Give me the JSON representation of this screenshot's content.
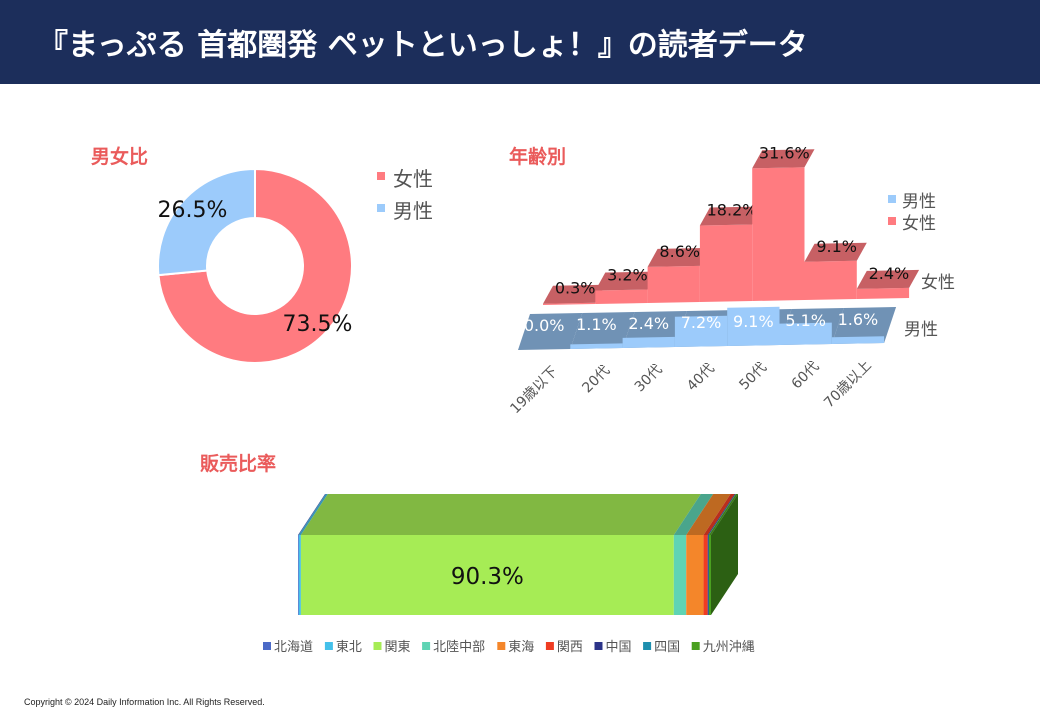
{
  "header": {
    "title": "『まっぷる 首都圏発 ペットといっしょ！』の読者データ"
  },
  "colors": {
    "header_bg": "#1c2e5b",
    "section_title": "#ea5b5b",
    "female": "#ff7b80",
    "male": "#9ccbfb"
  },
  "footer": {
    "copyright": "Copyright © 2024 Daily Information Inc. All Rights Reserved."
  },
  "chart_data": [
    {
      "id": "gender",
      "type": "pie",
      "title": "男女比",
      "donut": true,
      "legend_position": "right",
      "slices": [
        {
          "label": "女性",
          "value": 73.5,
          "value_label": "73.5%",
          "color": "#ff7b80"
        },
        {
          "label": "男性",
          "value": 26.5,
          "value_label": "26.5%",
          "color": "#9ccbfb"
        }
      ]
    },
    {
      "id": "age",
      "type": "area",
      "title": "年齢別",
      "three_d": true,
      "legend_position": "top-right",
      "categories": [
        "19歳以下",
        "20代",
        "30代",
        "40代",
        "50代",
        "60代",
        "70歳以上"
      ],
      "series": [
        {
          "name": "女性",
          "color": "#ff7b80",
          "values": [
            0.3,
            3.2,
            8.6,
            18.2,
            31.6,
            9.1,
            2.4
          ],
          "labels": [
            "0.3%",
            "3.2%",
            "8.6%",
            "18.2%",
            "31.6%",
            "9.1%",
            "2.4%"
          ]
        },
        {
          "name": "男性",
          "color": "#9ccbfb",
          "values": [
            0.0,
            1.1,
            2.4,
            7.2,
            9.1,
            5.1,
            1.6
          ],
          "labels": [
            "0.0%",
            "1.1%",
            "2.4%",
            "7.2%",
            "9.1%",
            "5.1%",
            "1.6%"
          ]
        }
      ],
      "legend": [
        "男性",
        "女性"
      ],
      "depth_labels": [
        "女性",
        "男性"
      ]
    },
    {
      "id": "sales",
      "type": "bar",
      "title": "販売比率",
      "stacked_100": true,
      "orientation": "horizontal",
      "three_d": true,
      "legend_position": "bottom",
      "series": [
        {
          "name": "北海道",
          "value": 0.2,
          "color": "#4b6ac7"
        },
        {
          "name": "東北",
          "value": 0.5,
          "color": "#44c0ea"
        },
        {
          "name": "関東",
          "value": 90.3,
          "label": "90.3%",
          "color": "#a6ec55"
        },
        {
          "name": "北陸中部",
          "value": 3.0,
          "color": "#5fd4b4"
        },
        {
          "name": "東海",
          "value": 4.2,
          "color": "#f4862a"
        },
        {
          "name": "関西",
          "value": 1.0,
          "color": "#ef3c22"
        },
        {
          "name": "中国",
          "value": 0.2,
          "color": "#2c3489"
        },
        {
          "name": "四国",
          "value": 0.1,
          "color": "#1e8fae"
        },
        {
          "name": "九州沖縄",
          "value": 0.5,
          "color": "#4aa020"
        }
      ]
    }
  ]
}
